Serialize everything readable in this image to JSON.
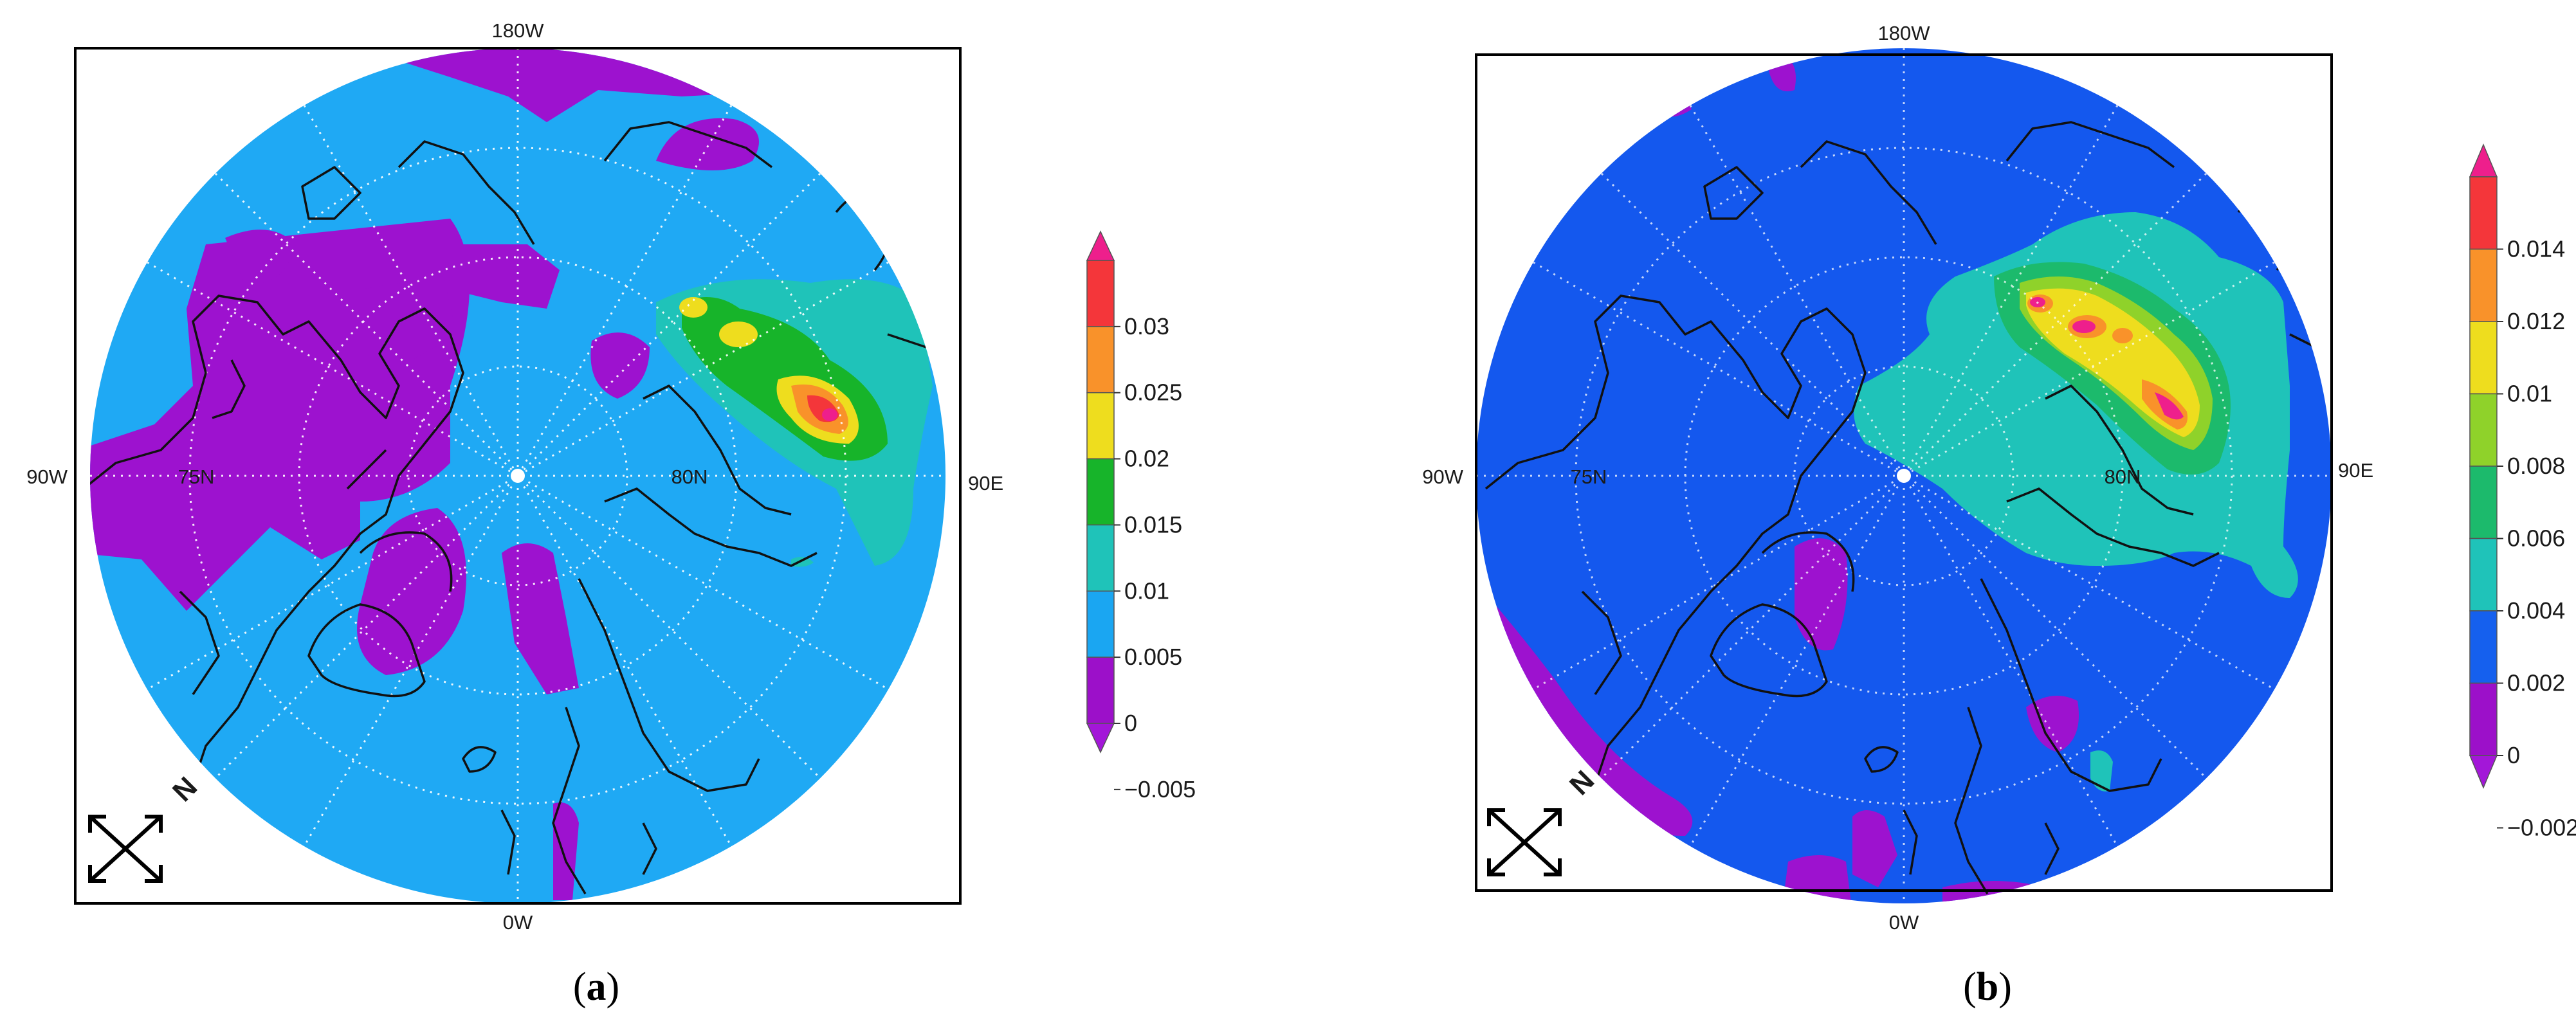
{
  "panels": [
    {
      "id": "a",
      "label_open": "(",
      "label_letter": "a",
      "label_close": ")",
      "map": {
        "top": "180W",
        "bottom": "0W",
        "left": "90W",
        "right": "90E",
        "lat_inner": "80N",
        "lat_outer": "75N",
        "compass": "N"
      },
      "colorbar": {
        "ticks": [
          "0.03",
          "0.025",
          "0.02",
          "0.015",
          "0.01",
          "0.005",
          "0",
          "−0.005"
        ],
        "colors": [
          "#ee1f8c",
          "#f4363a",
          "#f9922a",
          "#eedd1e",
          "#17b42a",
          "#1fc3b9",
          "#1aa6f2",
          "#9c10c9",
          "#a317d8"
        ]
      }
    },
    {
      "id": "b",
      "label_open": "(",
      "label_letter": "b",
      "label_close": ")",
      "map": {
        "top": "180W",
        "bottom": "0W",
        "left": "90W",
        "right": "90E",
        "lat_inner": "80N",
        "lat_outer": "75N",
        "compass": "N"
      },
      "colorbar": {
        "ticks": [
          "0.014",
          "0.012",
          "0.01",
          "0.008",
          "0.006",
          "0.004",
          "0.002",
          "0",
          "−0.002"
        ],
        "colors": [
          "#ee1f8c",
          "#f4363a",
          "#f9922a",
          "#eedd1e",
          "#8fd22a",
          "#1cba6c",
          "#1fc3b9",
          "#1560ee",
          "#9c10c9",
          "#a317d8"
        ]
      }
    }
  ]
}
